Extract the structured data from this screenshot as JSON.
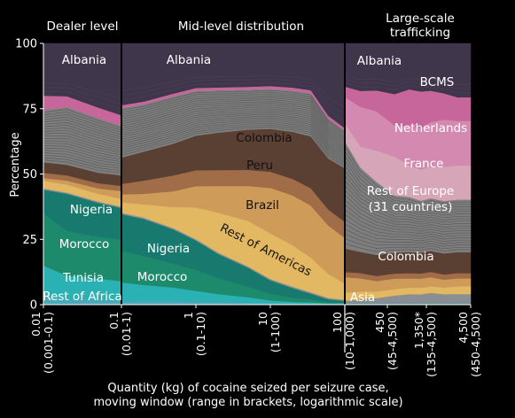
{
  "chart_data": {
    "type": "area",
    "stacked": true,
    "ylabel": "Percentage",
    "xlabel": [
      "Quantity (kg) of cocaine seized per seizure case,",
      "moving window (range in brackets, logarithmic scale)"
    ],
    "ylim": [
      0,
      100
    ],
    "yticks": [
      0,
      25,
      50,
      75,
      100
    ],
    "xscale": "log",
    "x_ticks": [
      {
        "lines": [
          "0.01",
          "(0.001-0.1)"
        ]
      },
      {
        "lines": [
          "0.1",
          "(0.01-1)"
        ]
      },
      {
        "lines": [
          "1",
          "(0.1-10)"
        ]
      },
      {
        "lines": [
          "10",
          "(1-100)"
        ]
      },
      {
        "lines": [
          "100",
          "(10-1,000)"
        ]
      },
      {
        "lines": [
          "450",
          "(45-4,500)"
        ]
      },
      {
        "lines": [
          "1,350*",
          "(135-4,500)"
        ]
      },
      {
        "lines": [
          "4,500",
          "(450-4,500)"
        ]
      }
    ],
    "panels": [
      {
        "title": [
          "Dealer level"
        ]
      },
      {
        "title": [
          "Mid-level distribution"
        ]
      },
      {
        "title": [
          "Large-scale",
          "trafficking"
        ]
      }
    ],
    "x_positions": [
      0.01,
      0.02,
      0.05,
      0.1,
      0.1,
      0.2,
      0.5,
      1,
      2,
      5,
      10,
      20,
      35,
      60,
      100,
      100,
      160,
      260,
      450,
      700,
      1000,
      1350,
      2000,
      3000,
      4500
    ],
    "series": [
      {
        "name": "Rest of Africa",
        "color": "#4ba8ba",
        "values": [
          3,
          2,
          2,
          2,
          1.5,
          1.5,
          1.5,
          1.2,
          1,
          0.8,
          0.6,
          0.5,
          0.5,
          0.3,
          0.3,
          0.5,
          0.5,
          0.5,
          0.5,
          0.5,
          0.5,
          0.5,
          0.5,
          0.5,
          0.5
        ]
      },
      {
        "name": "Tunisia",
        "color": "#2ab1b3",
        "values": [
          12,
          9,
          8,
          7,
          7,
          6,
          5,
          4,
          3,
          2,
          1,
          0.5,
          0.3,
          0.2,
          0.2,
          0,
          0,
          0,
          0,
          0,
          0,
          0,
          0,
          0,
          0
        ]
      },
      {
        "name": "Morocco",
        "color": "#1e8a6c",
        "values": [
          20,
          17,
          16,
          16,
          12,
          11,
          9,
          8,
          6,
          4,
          2.5,
          1.5,
          1,
          0.5,
          0.4,
          0,
          0,
          0,
          0,
          0,
          0,
          0,
          0,
          0,
          0
        ]
      },
      {
        "name": "Nigeria",
        "color": "#187a6e",
        "values": [
          9,
          14,
          13,
          12,
          14,
          14,
          13,
          11,
          9,
          7,
          5,
          3.5,
          2,
          1,
          0.5,
          0,
          0,
          0,
          0,
          0,
          0,
          0,
          0,
          0,
          0
        ]
      },
      {
        "name": "Asia",
        "color": "#888e94",
        "values": [
          0.5,
          0.5,
          0.5,
          0.5,
          0.5,
          0.5,
          0.5,
          0.5,
          0.5,
          0.5,
          0.5,
          0.5,
          0.5,
          0.5,
          0.5,
          1,
          1.5,
          2,
          3,
          3.5,
          3.5,
          4,
          3.5,
          3.5,
          3.5
        ]
      },
      {
        "name": "Rest of Americas",
        "color": "#e2b863",
        "values": [
          3,
          3,
          3,
          3,
          4,
          5,
          8,
          12,
          15,
          17,
          17,
          15,
          12,
          9,
          6,
          3,
          3,
          2.5,
          2.5,
          2.5,
          2.5,
          2.5,
          2.5,
          3,
          3
        ]
      },
      {
        "name": "Brazil",
        "color": "#cf9b58",
        "values": [
          1,
          1.5,
          2,
          3,
          3,
          4,
          6,
          8,
          10,
          13,
          17,
          18,
          18,
          18,
          17,
          6,
          5,
          4,
          4,
          3.5,
          3.5,
          3.5,
          3,
          3,
          3
        ]
      },
      {
        "name": "Peru",
        "color": "#a06d48",
        "values": [
          2,
          2,
          2,
          2,
          4,
          5,
          6,
          6,
          6,
          6,
          6,
          6,
          6,
          6,
          6,
          2,
          2,
          2,
          2,
          2,
          2,
          2,
          2,
          2,
          2
        ]
      },
      {
        "name": "Colombia",
        "color": "#5a3f33",
        "values": [
          4,
          4,
          4,
          4,
          10,
          11,
          12,
          13,
          14,
          15,
          16,
          17,
          18,
          19,
          20,
          9,
          8,
          8,
          8,
          8,
          8,
          8,
          8,
          8,
          8
        ]
      },
      {
        "name": "Rest of Europe (31 countries)",
        "color": "#7e7e7e",
        "values": [
          20,
          22,
          21,
          19,
          19,
          18,
          18,
          17,
          16,
          15,
          15,
          15,
          15,
          15,
          14,
          41,
          32,
          28,
          22,
          21,
          20,
          20,
          20,
          20,
          20
        ]
      },
      {
        "name": "France",
        "color": "#d6a5b8",
        "values": [
          0,
          0,
          0,
          0,
          0,
          0,
          0,
          0,
          0,
          0,
          0,
          0,
          0,
          0,
          0,
          7,
          8,
          12,
          15,
          12,
          12,
          12,
          13,
          13,
          13
        ]
      },
      {
        "name": "Netherlands",
        "color": "#d48ab0",
        "values": [
          0,
          0,
          0,
          0,
          0,
          0,
          0,
          0,
          0,
          0,
          0,
          0,
          0,
          0,
          0,
          10,
          15,
          15,
          12,
          15,
          16,
          17,
          18,
          17,
          17
        ]
      },
      {
        "name": "BCMS",
        "color": "#c7669a",
        "values": [
          5.5,
          4,
          4,
          4,
          1,
          1,
          1,
          1,
          1,
          1,
          1,
          1,
          1,
          1,
          1,
          4,
          6,
          8,
          12,
          14,
          14,
          12,
          10,
          9,
          9
        ]
      },
      {
        "name": "Albania",
        "color": "#40364c",
        "values": [
          20,
          20,
          24.5,
          27.5,
          23.5,
          22,
          19,
          16.8,
          16.5,
          16.2,
          15.9,
          16,
          16.2,
          27.0,
          31.6,
          16.5,
          18,
          18,
          19.5,
          17.5,
          18.5,
          18,
          19,
          20.5,
          20.5
        ]
      }
    ]
  }
}
